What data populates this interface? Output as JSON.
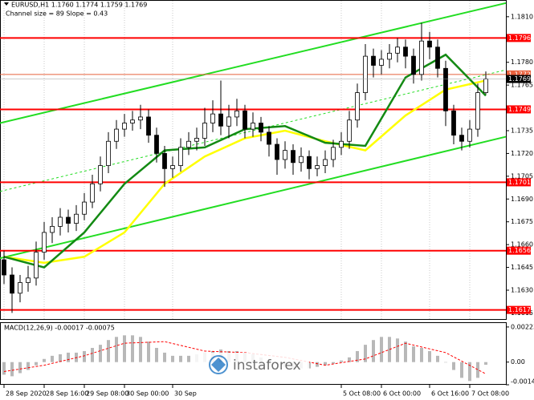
{
  "chart_data": {
    "type": "candlestick",
    "title": "EURUSD,H1 1.1760 1.1774 1.1759 1.1769",
    "subtitle": "Channel size = 89 Slope = 0.43",
    "open": [
      1.165,
      1.164,
      1.1628,
      1.1635,
      1.1638,
      1.1655,
      1.1668,
      1.1672,
      1.1678,
      1.1674,
      1.168,
      1.1688,
      1.17,
      1.1712,
      1.1728,
      1.1736,
      1.174,
      1.1742,
      1.1744,
      1.1732,
      1.172,
      1.171,
      1.1712,
      1.1724,
      1.1728,
      1.173,
      1.174,
      1.1746,
      1.1738,
      1.1744,
      1.1748,
      1.1736,
      1.174,
      1.1734,
      1.1726,
      1.1716,
      1.1722,
      1.1714,
      1.1718,
      1.171,
      1.1712,
      1.1716,
      1.1724,
      1.1728,
      1.1742,
      1.176,
      1.1784,
      1.1778,
      1.1782,
      1.1786,
      1.179,
      1.1784,
      1.1772,
      1.1794,
      1.179,
      1.1776,
      1.1748,
      1.1732,
      1.1728,
      1.1736,
      1.176
    ],
    "high": [
      1.1656,
      1.1645,
      1.164,
      1.1646,
      1.1662,
      1.1675,
      1.1678,
      1.1684,
      1.1683,
      1.1686,
      1.1694,
      1.1706,
      1.1718,
      1.1734,
      1.1742,
      1.1746,
      1.1748,
      1.1752,
      1.1749,
      1.1737,
      1.1725,
      1.1718,
      1.173,
      1.1734,
      1.1737,
      1.175,
      1.1755,
      1.1768,
      1.1752,
      1.1756,
      1.1752,
      1.1747,
      1.1744,
      1.1738,
      1.173,
      1.1728,
      1.1726,
      1.1724,
      1.1722,
      1.1718,
      1.1722,
      1.1729,
      1.1734,
      1.1748,
      1.1766,
      1.1792,
      1.1789,
      1.1788,
      1.1792,
      1.1796,
      1.1795,
      1.1789,
      1.1806,
      1.18,
      1.1795,
      1.1781,
      1.1752,
      1.1737,
      1.1742,
      1.1766,
      1.1774
    ],
    "low": [
      1.1634,
      1.1615,
      1.1622,
      1.1629,
      1.1633,
      1.165,
      1.1661,
      1.1666,
      1.1668,
      1.1669,
      1.1676,
      1.1684,
      1.1695,
      1.1707,
      1.1723,
      1.1731,
      1.1735,
      1.1736,
      1.1727,
      1.1714,
      1.1698,
      1.1704,
      1.1708,
      1.1719,
      1.1722,
      1.1725,
      1.1734,
      1.1732,
      1.173,
      1.1738,
      1.173,
      1.1731,
      1.1728,
      1.1718,
      1.1706,
      1.171,
      1.1706,
      1.1708,
      1.1703,
      1.1705,
      1.1707,
      1.1711,
      1.1719,
      1.1723,
      1.1737,
      1.1755,
      1.177,
      1.1772,
      1.1776,
      1.178,
      1.1776,
      1.1766,
      1.1768,
      1.1782,
      1.177,
      1.1738,
      1.1726,
      1.1722,
      1.1724,
      1.1731,
      1.1759
    ],
    "close": [
      1.164,
      1.1628,
      1.1635,
      1.1638,
      1.1655,
      1.1668,
      1.1672,
      1.1678,
      1.1674,
      1.168,
      1.1688,
      1.17,
      1.1712,
      1.1728,
      1.1736,
      1.174,
      1.1742,
      1.1744,
      1.1732,
      1.172,
      1.171,
      1.1712,
      1.1724,
      1.1728,
      1.173,
      1.174,
      1.1746,
      1.1738,
      1.1744,
      1.1748,
      1.1736,
      1.174,
      1.1734,
      1.1726,
      1.1716,
      1.1722,
      1.1714,
      1.1718,
      1.171,
      1.1712,
      1.1716,
      1.1724,
      1.1728,
      1.1742,
      1.176,
      1.1784,
      1.1778,
      1.1782,
      1.1786,
      1.179,
      1.1784,
      1.1772,
      1.1794,
      1.179,
      1.1776,
      1.1748,
      1.1732,
      1.1728,
      1.1736,
      1.176,
      1.1769
    ],
    "ylim": [
      1.1611,
      1.1821
    ],
    "yticks": [
      {
        "value": 1.181,
        "label": "1.1810"
      },
      {
        "value": 1.178,
        "label": "1.1780"
      },
      {
        "value": 1.1765,
        "label": "1.1765"
      },
      {
        "value": 1.1735,
        "label": "1.1735"
      },
      {
        "value": 1.172,
        "label": "1.1720"
      },
      {
        "value": 1.1705,
        "label": "1.1705"
      },
      {
        "value": 1.169,
        "label": "1.1690"
      },
      {
        "value": 1.1675,
        "label": "1.1675"
      },
      {
        "value": 1.166,
        "label": "1.1660"
      },
      {
        "value": 1.1645,
        "label": "1.1645"
      },
      {
        "value": 1.163,
        "label": "1.1630"
      },
      {
        "value": 1.1615,
        "label": "1.1615"
      }
    ],
    "xticks": [
      {
        "value": 0,
        "label": "28 Sep 2020"
      },
      {
        "value": 5,
        "label": "28 Sep 16:00"
      },
      {
        "value": 10,
        "label": "29 Sep 08:00"
      },
      {
        "value": 15,
        "label": "30 Sep 00:00"
      },
      {
        "value": 21,
        "label": "30 Sep"
      },
      {
        "value": 42,
        "label": "5 Oct 08:00"
      },
      {
        "value": 47,
        "label": "6 Oct 00:00"
      },
      {
        "value": 53,
        "label": "6 Oct 16:00"
      },
      {
        "value": 58,
        "label": "7 Oct 08:00"
      }
    ],
    "levels": [
      {
        "value": 1.1796,
        "color": "#ff0000"
      },
      {
        "value": 1.1749,
        "color": "#ff0000"
      },
      {
        "value": 1.1701,
        "color": "#ff0000"
      },
      {
        "value": 1.1656,
        "color": "#ff0000"
      },
      {
        "value": 1.1617,
        "color": "#ff0000"
      },
      {
        "value": 1.1772,
        "color": "#e8603c"
      }
    ],
    "current_price": 1.1769,
    "ma": [
      {
        "color": "#ffff00",
        "x": [
          0,
          5,
          10,
          15,
          20,
          25,
          30,
          35,
          40,
          45,
          50,
          55,
          60
        ],
        "values": [
          1.1652,
          1.1648,
          1.1652,
          1.1668,
          1.17,
          1.1718,
          1.173,
          1.1735,
          1.1728,
          1.1722,
          1.1745,
          1.1762,
          1.1768
        ]
      },
      {
        "color": "#138a13",
        "x": [
          0,
          5,
          10,
          15,
          20,
          25,
          30,
          35,
          40,
          45,
          50,
          55,
          60
        ],
        "values": [
          1.1652,
          1.1645,
          1.1668,
          1.17,
          1.1722,
          1.1724,
          1.1736,
          1.1738,
          1.1727,
          1.1725,
          1.177,
          1.1785,
          1.1758
        ]
      }
    ],
    "channel": {
      "color": "#22dd22",
      "upper": [
        1.174,
        1.1819
      ],
      "middle": [
        1.1695,
        1.1775
      ],
      "lower": [
        1.1651,
        1.1731
      ]
    },
    "macd": {
      "title": "MACD(12,26,9) -0.00017 -0.00075",
      "values": [
        -0.0008,
        -0.0009,
        -0.0007,
        -0.0005,
        -0.0002,
        0.0002,
        0.0004,
        0.0005,
        0.0006,
        0.0006,
        0.0007,
        0.0009,
        0.0011,
        0.0014,
        0.0016,
        0.0017,
        0.0017,
        0.0016,
        0.0013,
        0.0009,
        0.0006,
        0.0004,
        0.0004,
        0.0004,
        0.0005,
        0.0006,
        0.0007,
        0.0008,
        0.0007,
        0.0007,
        0.0006,
        0.0005,
        0.0003,
        0.0001,
        -0.0001,
        -0.0003,
        -0.0004,
        -0.0004,
        -0.0004,
        -0.0003,
        -0.0002,
        -0.0001,
        0.0001,
        0.0003,
        0.0007,
        0.0011,
        0.0014,
        0.0016,
        0.0016,
        0.0015,
        0.0013,
        0.001,
        0.0009,
        0.0007,
        0.0004,
        0.0,
        -0.0005,
        -0.001,
        -0.0012,
        -0.001,
        -0.00017
      ],
      "signal": {
        "color": "#ff0000",
        "x": [
          0,
          5,
          10,
          15,
          20,
          25,
          30,
          35,
          40,
          45,
          50,
          55,
          60
        ],
        "values": [
          -0.0006,
          -0.0002,
          0.0004,
          0.0012,
          0.0013,
          0.0007,
          0.0006,
          0.0003,
          -0.0002,
          0.0002,
          0.0012,
          0.0006,
          -0.00075
        ]
      },
      "ylim": [
        -0.00144,
        0.00248
      ],
      "yticks": [
        0.00223,
        {
          "value": 0,
          "label": "0.00"
        },
        -0.00144
      ]
    },
    "watermark": "instaforex"
  }
}
